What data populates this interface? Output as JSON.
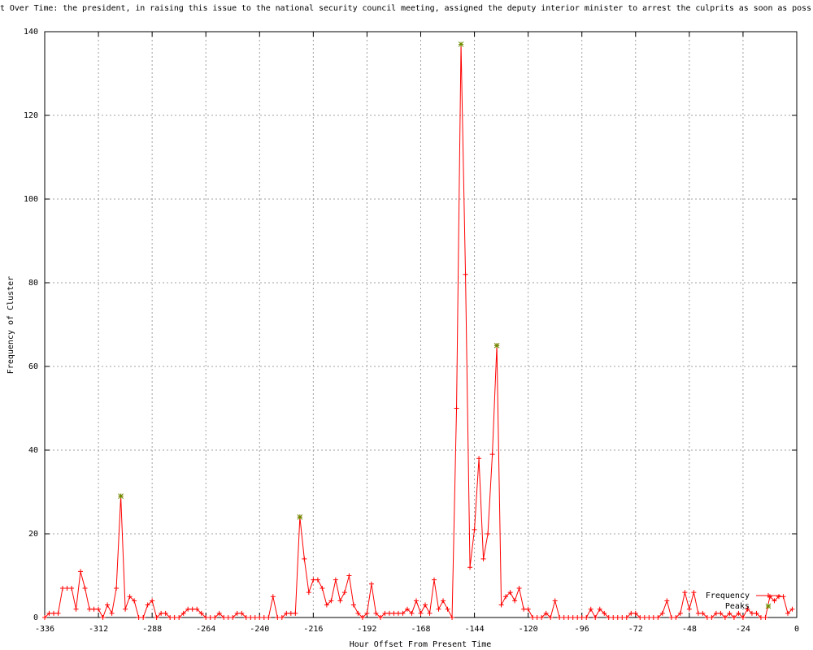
{
  "chart_data": {
    "type": "line",
    "title": "t Over Time: the president, in raising this issue to the national security council meeting, assigned the deputy interior minister to arrest the culprits as soon as poss",
    "x_label": "Hour Offset From Present Time",
    "y_label": "Frequency of Cluster",
    "xlim": [
      -336,
      0
    ],
    "ylim": [
      0,
      140
    ],
    "xticks": [
      -336,
      -312,
      -288,
      -264,
      -240,
      -216,
      -192,
      -168,
      -144,
      -120,
      -96,
      -72,
      -48,
      -24,
      0
    ],
    "yticks": [
      0,
      20,
      40,
      60,
      80,
      100,
      120,
      140
    ],
    "grid": true,
    "legend": "bottom-right",
    "series": [
      {
        "name": "Frequency",
        "color": "#ff0000",
        "x": [
          -336,
          -334,
          -332,
          -330,
          -328,
          -326,
          -324,
          -322,
          -320,
          -318,
          -316,
          -314,
          -312,
          -310,
          -308,
          -306,
          -304,
          -302,
          -300,
          -298,
          -296,
          -294,
          -292,
          -290,
          -288,
          -286,
          -284,
          -282,
          -280,
          -278,
          -276,
          -274,
          -272,
          -270,
          -268,
          -266,
          -264,
          -262,
          -260,
          -258,
          -256,
          -254,
          -252,
          -250,
          -248,
          -246,
          -244,
          -242,
          -240,
          -238,
          -236,
          -234,
          -232,
          -230,
          -228,
          -226,
          -224,
          -222,
          -220,
          -218,
          -216,
          -214,
          -212,
          -210,
          -208,
          -206,
          -204,
          -202,
          -200,
          -198,
          -196,
          -194,
          -192,
          -190,
          -188,
          -186,
          -184,
          -182,
          -180,
          -178,
          -176,
          -174,
          -172,
          -170,
          -168,
          -166,
          -164,
          -162,
          -160,
          -158,
          -156,
          -154,
          -152,
          -150,
          -148,
          -146,
          -144,
          -142,
          -140,
          -138,
          -136,
          -134,
          -132,
          -130,
          -128,
          -126,
          -124,
          -122,
          -120,
          -118,
          -116,
          -114,
          -112,
          -110,
          -108,
          -106,
          -104,
          -102,
          -100,
          -98,
          -96,
          -94,
          -92,
          -90,
          -88,
          -86,
          -84,
          -82,
          -80,
          -78,
          -76,
          -74,
          -72,
          -70,
          -68,
          -66,
          -64,
          -62,
          -60,
          -58,
          -56,
          -54,
          -52,
          -50,
          -48,
          -46,
          -44,
          -42,
          -40,
          -38,
          -36,
          -34,
          -32,
          -30,
          -28,
          -26,
          -24,
          -22,
          -20,
          -18,
          -16,
          -14,
          -12,
          -10,
          -8,
          -6,
          -4,
          -2
        ],
        "values": [
          0,
          1,
          1,
          1,
          7,
          7,
          7,
          2,
          11,
          7,
          2,
          2,
          2,
          0,
          3,
          1,
          7,
          29,
          2,
          5,
          4,
          0,
          0,
          3,
          4,
          0,
          1,
          1,
          0,
          0,
          0,
          1,
          2,
          2,
          2,
          1,
          0,
          0,
          0,
          1,
          0,
          0,
          0,
          1,
          1,
          0,
          0,
          0,
          0,
          0,
          0,
          5,
          0,
          0,
          1,
          1,
          1,
          24,
          14,
          6,
          9,
          9,
          7,
          3,
          4,
          9,
          4,
          6,
          10,
          3,
          1,
          0,
          1,
          8,
          1,
          0,
          1,
          1,
          1,
          1,
          1,
          2,
          1,
          4,
          1,
          3,
          1,
          9,
          2,
          4,
          2,
          0,
          50,
          137,
          82,
          12,
          21,
          38,
          14,
          20,
          39,
          65,
          3,
          5,
          6,
          4,
          7,
          2,
          2,
          0,
          0,
          0,
          1,
          0,
          4,
          0,
          0,
          0,
          0,
          0,
          0,
          0,
          2,
          0,
          2,
          1,
          0,
          0,
          0,
          0,
          0,
          1,
          1,
          0,
          0,
          0,
          0,
          0,
          1,
          4,
          0,
          0,
          1,
          6,
          2,
          6,
          1,
          1,
          0,
          0,
          1,
          1,
          0,
          1,
          0,
          1,
          0,
          2,
          1,
          1,
          0,
          0,
          5,
          4,
          5,
          5,
          1,
          2
        ]
      },
      {
        "name": "Peaks",
        "color": "#6b8e00",
        "x": [
          -302,
          -222,
          -150,
          -134
        ],
        "values": [
          29,
          24,
          137,
          65
        ]
      }
    ]
  }
}
